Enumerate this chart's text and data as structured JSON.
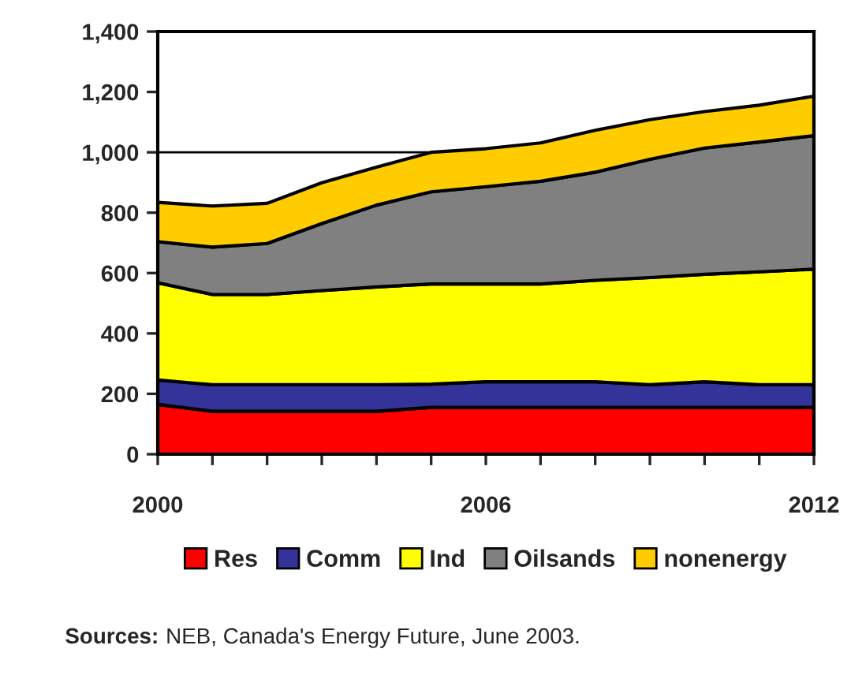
{
  "chart_data": {
    "type": "area",
    "stacked": true,
    "x": [
      2000,
      2001,
      2002,
      2003,
      2004,
      2005,
      2006,
      2007,
      2008,
      2009,
      2010,
      2011,
      2012
    ],
    "series": [
      {
        "name": "Res",
        "color": "#ff0000",
        "values": [
          165,
          142,
          142,
          142,
          142,
          155,
          155,
          155,
          155,
          155,
          155,
          155,
          155
        ]
      },
      {
        "name": "Comm",
        "color": "#333399",
        "values": [
          81,
          88,
          88,
          88,
          88,
          77,
          85,
          85,
          85,
          75,
          85,
          75,
          75
        ]
      },
      {
        "name": "Ind",
        "color": "#ffff00",
        "values": [
          322,
          299,
          299,
          312,
          324,
          332,
          324,
          324,
          336,
          355,
          356,
          374,
          383
        ]
      },
      {
        "name": "Oilsands",
        "color": "#808080",
        "values": [
          136,
          157,
          169,
          222,
          271,
          305,
          322,
          340,
          358,
          392,
          418,
          430,
          442
        ]
      },
      {
        "name": "nonenergy",
        "color": "#ffcc00",
        "values": [
          130,
          136,
          133,
          135,
          126,
          131,
          126,
          127,
          139,
          131,
          121,
          122,
          131
        ]
      }
    ],
    "xlim": [
      2000,
      2012
    ],
    "xticks": [
      2000,
      {
        "value": 2001,
        "label": null
      },
      {
        "value": 2002,
        "label": null
      },
      {
        "value": 2003,
        "label": null
      },
      {
        "value": 2004,
        "label": null
      },
      {
        "value": 2005,
        "label": null
      },
      2006,
      {
        "value": 2007,
        "label": null
      },
      {
        "value": 2008,
        "label": null
      },
      {
        "value": 2009,
        "label": null
      },
      {
        "value": 2010,
        "label": null
      },
      {
        "value": 2011,
        "label": null
      },
      2012
    ],
    "ylim": [
      0,
      1400
    ],
    "yticks": [
      0,
      {
        "value": 200,
        "label": "200"
      },
      {
        "value": 400,
        "label": "400"
      },
      {
        "value": 600,
        "label": "600"
      },
      {
        "value": 800,
        "label": "800"
      },
      {
        "value": 1000,
        "label": "1,000"
      },
      {
        "value": 1200,
        "label": "1,200"
      },
      {
        "value": 1400,
        "label": "1,400"
      }
    ],
    "ref_lines": [
      {
        "axis": "y",
        "value": 1000,
        "color": "#000000"
      }
    ],
    "legend": "bottom",
    "annotations": [
      "Sources: NEB, Canada's Energy Future, June 2003."
    ]
  }
}
